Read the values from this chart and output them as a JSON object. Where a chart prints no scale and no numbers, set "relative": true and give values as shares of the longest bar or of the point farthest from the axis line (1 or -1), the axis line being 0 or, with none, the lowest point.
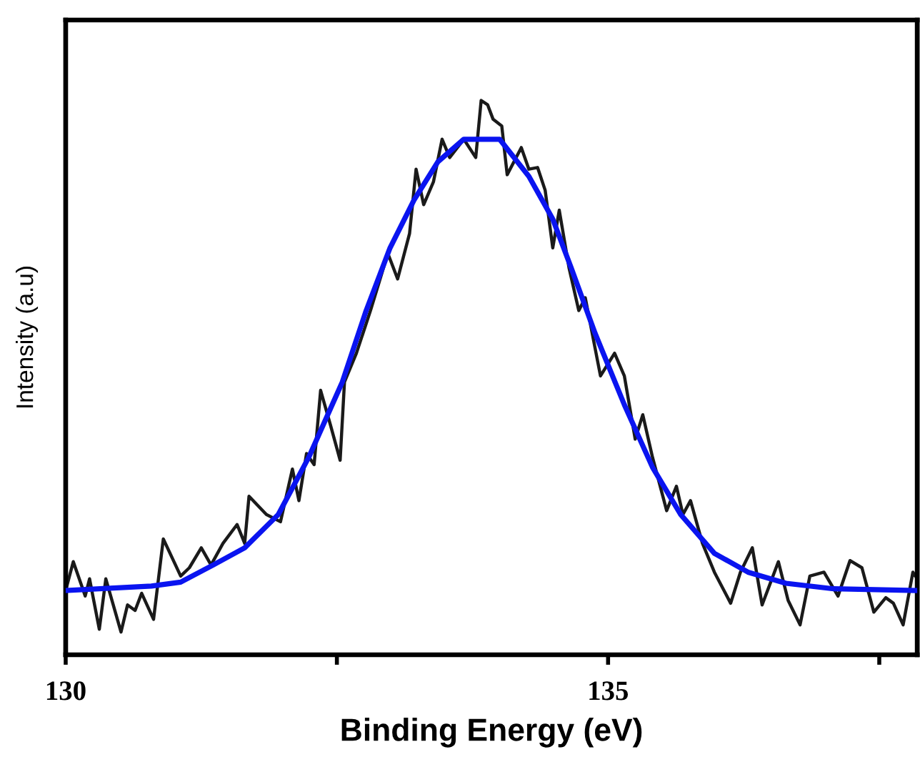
{
  "chart_data": {
    "type": "line",
    "xlabel": "Binding Energy (eV)",
    "ylabel": "Intensity (a.u)",
    "relative": true,
    "xlim": [
      130,
      137.85
    ],
    "xticks": [
      130,
      {
        "value": 132.5,
        "label": null
      },
      135,
      {
        "value": 137.5,
        "label": null
      }
    ],
    "grid": false,
    "legend": false,
    "marker": "none",
    "line_style": "solid",
    "series": [
      {
        "color": "#1a1a1a",
        "x": [
          130.0,
          130.07,
          130.18,
          130.22,
          130.31,
          130.37,
          130.51,
          130.57,
          130.64,
          130.7,
          130.81,
          130.9,
          131.06,
          131.14,
          131.25,
          131.34,
          131.45,
          131.58,
          131.65,
          131.69,
          131.85,
          131.98,
          132.09,
          132.15,
          132.22,
          132.29,
          132.35,
          132.44,
          132.53,
          132.57,
          132.68,
          132.81,
          132.97,
          133.06,
          133.17,
          133.23,
          133.3,
          133.39,
          133.47,
          133.54,
          133.67,
          133.78,
          133.83,
          133.89,
          133.94,
          134.02,
          134.07,
          134.2,
          134.27,
          134.35,
          134.42,
          134.49,
          134.55,
          134.64,
          134.73,
          134.79,
          134.93,
          135.06,
          135.15,
          135.25,
          135.32,
          135.41,
          135.54,
          135.63,
          135.69,
          135.76,
          135.87,
          135.98,
          136.13,
          136.22,
          136.33,
          136.42,
          136.57,
          136.66,
          136.77,
          136.86,
          136.99,
          137.12,
          137.23,
          137.34,
          137.45,
          137.56,
          137.63,
          137.72,
          137.81,
          137.85
        ],
        "values": [
          0.116,
          0.168,
          0.106,
          0.137,
          0.046,
          0.137,
          0.041,
          0.09,
          0.08,
          0.111,
          0.064,
          0.209,
          0.142,
          0.157,
          0.193,
          0.162,
          0.201,
          0.235,
          0.201,
          0.286,
          0.253,
          0.24,
          0.335,
          0.278,
          0.363,
          0.343,
          0.477,
          0.415,
          0.351,
          0.492,
          0.544,
          0.621,
          0.724,
          0.678,
          0.76,
          0.876,
          0.812,
          0.853,
          0.93,
          0.897,
          0.93,
          0.897,
          1.0,
          0.992,
          0.966,
          0.954,
          0.866,
          0.915,
          0.876,
          0.879,
          0.838,
          0.734,
          0.802,
          0.698,
          0.621,
          0.644,
          0.503,
          0.544,
          0.503,
          0.389,
          0.433,
          0.356,
          0.26,
          0.304,
          0.253,
          0.278,
          0.201,
          0.149,
          0.093,
          0.149,
          0.193,
          0.09,
          0.168,
          0.098,
          0.054,
          0.142,
          0.149,
          0.106,
          0.17,
          0.157,
          0.077,
          0.103,
          0.093,
          0.054,
          0.149,
          0.137
        ]
      },
      {
        "color": "#0a14f0",
        "x": [
          130.0,
          130.79,
          131.06,
          131.36,
          131.65,
          131.96,
          132.24,
          132.55,
          132.77,
          132.99,
          133.21,
          133.43,
          133.67,
          133.96,
          134.0,
          134.27,
          134.49,
          134.66,
          134.88,
          135.15,
          135.41,
          135.67,
          135.98,
          136.29,
          136.64,
          137.08,
          137.85
        ],
        "values": [
          0.116,
          0.124,
          0.131,
          0.162,
          0.193,
          0.253,
          0.356,
          0.492,
          0.621,
          0.734,
          0.82,
          0.889,
          0.93,
          0.93,
          0.93,
          0.863,
          0.786,
          0.698,
          0.58,
          0.451,
          0.338,
          0.253,
          0.183,
          0.149,
          0.129,
          0.119,
          0.116
        ]
      }
    ]
  }
}
